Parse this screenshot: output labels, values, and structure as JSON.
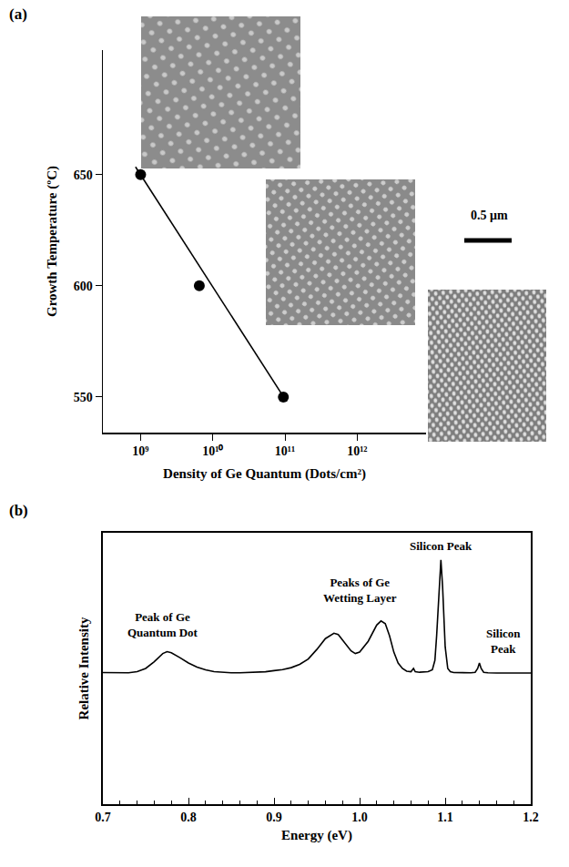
{
  "chart_data": [
    {
      "type": "scatter",
      "title": "(a)",
      "x_label": "Density of Ge Quantum (Dots/cm²)",
      "y_label": "Growth Temperature (ºC)",
      "log": "x",
      "grid": false,
      "xlim": [
        300000000,
        9000000000000
      ],
      "xticks": [
        {
          "value": 1000000000.0,
          "label": "10⁹"
        },
        {
          "value": 10000000000.0,
          "label": "10¹⁰"
        },
        {
          "value": 100000000000.0,
          "label": "10¹¹"
        },
        {
          "value": 1000000000000.0,
          "label": "10¹²"
        }
      ],
      "ylim": [
        534,
        706
      ],
      "yticks": [
        550,
        600,
        650
      ],
      "series": [
        {
          "type": "scatter",
          "marker": "circle",
          "color": "#000000",
          "x": [
            1000000000.0,
            6500000000.0,
            95000000000.0
          ],
          "values": [
            650,
            600,
            550
          ]
        },
        {
          "type": "line",
          "line_style": "solid",
          "color": "#000000",
          "x": [
            850000000.0,
            105000000000.0
          ],
          "values": [
            653.5,
            548
          ]
        }
      ],
      "annotations": [
        {
          "text": "0.5 μm"
        }
      ]
    },
    {
      "type": "line",
      "title": "(b)",
      "x_label": "Energy (eV)",
      "y_label": "Relative Intensity",
      "tick_labels": "x",
      "grid": false,
      "xlim": [
        0.7,
        1.2
      ],
      "xticks": [
        0.7,
        0.8,
        0.9,
        {
          "value": 1,
          "label": "1.0"
        },
        1.1,
        1.2
      ],
      "ylim": [
        0,
        100
      ],
      "series": [
        {
          "type": "line",
          "line_style": "solid",
          "color": "#000000",
          "x": [
            0.7,
            0.71,
            0.72,
            0.73,
            0.74,
            0.75,
            0.76,
            0.77,
            0.775,
            0.78,
            0.79,
            0.8,
            0.81,
            0.82,
            0.83,
            0.84,
            0.85,
            0.86,
            0.87,
            0.88,
            0.89,
            0.9,
            0.91,
            0.92,
            0.93,
            0.94,
            0.95,
            0.96,
            0.97,
            0.975,
            0.98,
            0.99,
            0.995,
            1.0,
            1.01,
            1.02,
            1.025,
            1.03,
            1.035,
            1.04,
            1.045,
            1.05,
            1.055,
            1.06,
            1.063,
            1.065,
            1.07,
            1.08,
            1.085,
            1.088,
            1.09,
            1.093,
            1.095,
            1.097,
            1.1,
            1.103,
            1.106,
            1.11,
            1.12,
            1.13,
            1.135,
            1.138,
            1.14,
            1.142,
            1.145,
            1.15,
            1.16,
            1.17,
            1.18,
            1.19,
            1.2
          ],
          "values": [
            48.5,
            48.4,
            48.3,
            48.4,
            48.8,
            50.0,
            52.5,
            55.5,
            56.2,
            55.8,
            54.0,
            52.0,
            50.5,
            49.5,
            48.8,
            48.5,
            48.4,
            48.4,
            48.5,
            48.6,
            48.8,
            49.2,
            49.6,
            50.3,
            51.5,
            53.5,
            57.0,
            61.0,
            63.0,
            62.5,
            60.5,
            56.5,
            55.5,
            56.0,
            60.0,
            66.0,
            67.5,
            66.5,
            62.0,
            56.0,
            52.0,
            50.0,
            49.0,
            48.8,
            50.0,
            48.8,
            48.6,
            48.8,
            49.5,
            53.0,
            62.0,
            80.0,
            90.0,
            80.0,
            58.0,
            50.0,
            48.8,
            48.5,
            48.4,
            48.4,
            48.6,
            50.0,
            52.0,
            50.0,
            48.6,
            48.4,
            48.3,
            48.3,
            48.3,
            48.3,
            48.3
          ]
        }
      ],
      "annotations": [
        {
          "text": "Peak of Ge Quantum Dot",
          "x": 0.77,
          "y": 66
        },
        {
          "text": "Peaks of Ge Wetting Layer",
          "x": 1.0,
          "y": 79
        },
        {
          "text": "Silicon Peak",
          "x": 1.095,
          "y": 95
        },
        {
          "text": "Silicon Peak",
          "x": 1.168,
          "y": 60
        }
      ]
    }
  ]
}
